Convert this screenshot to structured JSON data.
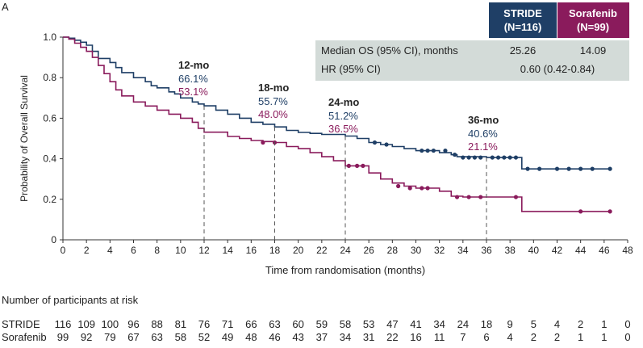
{
  "panel_label": "A",
  "chart_data": {
    "type": "line",
    "step": true,
    "xlabel": "Time from randomisation (months)",
    "ylabel": "Probability of Overall Survival",
    "xlim": [
      0,
      48
    ],
    "ylim": [
      0,
      1.0
    ],
    "xticks": [
      "0",
      "2",
      "4",
      "6",
      "8",
      "10",
      "12",
      "14",
      "16",
      "18",
      "20",
      "22",
      "24",
      "26",
      "28",
      "30",
      "32",
      "34",
      "36",
      "38",
      "40",
      "42",
      "44",
      "46",
      "48"
    ],
    "yticks": [
      "0",
      "0.2",
      "0.4",
      "0.6",
      "0.8",
      "1.0"
    ],
    "colors": {
      "stride": "#1f3f66",
      "sorafenib": "#8a1b5c",
      "table_bg": "#d3dbd8"
    },
    "series": [
      {
        "key": "stride",
        "name": "STRIDE",
        "n_label": "(N=116)",
        "points": [
          [
            0,
            1.0
          ],
          [
            0.5,
            0.995
          ],
          [
            1,
            0.985
          ],
          [
            1.5,
            0.975
          ],
          [
            2,
            0.96
          ],
          [
            2.5,
            0.93
          ],
          [
            3,
            0.895
          ],
          [
            4,
            0.875
          ],
          [
            4.5,
            0.85
          ],
          [
            5,
            0.825
          ],
          [
            6,
            0.8
          ],
          [
            7,
            0.78
          ],
          [
            7.5,
            0.76
          ],
          [
            8,
            0.75
          ],
          [
            9,
            0.73
          ],
          [
            9.5,
            0.72
          ],
          [
            10,
            0.7
          ],
          [
            11,
            0.68
          ],
          [
            11.5,
            0.67
          ],
          [
            12,
            0.661
          ],
          [
            13,
            0.64
          ],
          [
            14,
            0.62
          ],
          [
            15,
            0.6
          ],
          [
            16,
            0.58
          ],
          [
            17,
            0.57
          ],
          [
            18,
            0.557
          ],
          [
            19,
            0.54
          ],
          [
            20,
            0.53
          ],
          [
            21,
            0.525
          ],
          [
            22,
            0.52
          ],
          [
            24,
            0.512
          ],
          [
            25,
            0.5
          ],
          [
            26,
            0.48
          ],
          [
            27,
            0.47
          ],
          [
            28,
            0.46
          ],
          [
            29,
            0.45
          ],
          [
            30,
            0.44
          ],
          [
            32,
            0.43
          ],
          [
            33,
            0.42
          ],
          [
            33.5,
            0.41
          ],
          [
            36,
            0.406
          ],
          [
            39,
            0.35
          ],
          [
            46.5,
            0.35
          ]
        ],
        "censor": [
          [
            26.5,
            0.48
          ],
          [
            27.5,
            0.47
          ],
          [
            30.5,
            0.44
          ],
          [
            31,
            0.44
          ],
          [
            31.5,
            0.44
          ],
          [
            32.5,
            0.44
          ],
          [
            33.3,
            0.42
          ],
          [
            34,
            0.406
          ],
          [
            34.5,
            0.406
          ],
          [
            35,
            0.406
          ],
          [
            35.5,
            0.406
          ],
          [
            36.5,
            0.406
          ],
          [
            37,
            0.406
          ],
          [
            37.5,
            0.406
          ],
          [
            38,
            0.406
          ],
          [
            38.5,
            0.406
          ],
          [
            39.5,
            0.35
          ],
          [
            40.5,
            0.35
          ],
          [
            42,
            0.35
          ],
          [
            43,
            0.35
          ],
          [
            44,
            0.35
          ],
          [
            45,
            0.35
          ],
          [
            46.5,
            0.35
          ]
        ]
      },
      {
        "key": "sorafenib",
        "name": "Sorafenib",
        "n_label": "(N=99)",
        "points": [
          [
            0,
            1.0
          ],
          [
            0.5,
            0.99
          ],
          [
            1,
            0.97
          ],
          [
            1.5,
            0.95
          ],
          [
            2,
            0.93
          ],
          [
            2.5,
            0.9
          ],
          [
            3,
            0.86
          ],
          [
            3.5,
            0.82
          ],
          [
            4,
            0.78
          ],
          [
            4.5,
            0.74
          ],
          [
            5,
            0.71
          ],
          [
            6,
            0.68
          ],
          [
            7,
            0.66
          ],
          [
            8,
            0.64
          ],
          [
            9,
            0.62
          ],
          [
            10,
            0.6
          ],
          [
            11,
            0.58
          ],
          [
            11.5,
            0.55
          ],
          [
            12,
            0.531
          ],
          [
            14,
            0.51
          ],
          [
            15,
            0.5
          ],
          [
            16,
            0.49
          ],
          [
            17,
            0.485
          ],
          [
            18,
            0.48
          ],
          [
            19,
            0.46
          ],
          [
            20,
            0.45
          ],
          [
            21,
            0.43
          ],
          [
            22,
            0.41
          ],
          [
            23,
            0.39
          ],
          [
            24,
            0.365
          ],
          [
            26,
            0.33
          ],
          [
            27,
            0.3
          ],
          [
            28,
            0.28
          ],
          [
            29,
            0.265
          ],
          [
            30,
            0.255
          ],
          [
            32,
            0.24
          ],
          [
            33,
            0.215
          ],
          [
            34,
            0.211
          ],
          [
            39,
            0.14
          ],
          [
            46.5,
            0.14
          ]
        ],
        "censor": [
          [
            17,
            0.48
          ],
          [
            18,
            0.48
          ],
          [
            24.3,
            0.365
          ],
          [
            25,
            0.365
          ],
          [
            25.5,
            0.365
          ],
          [
            28.5,
            0.265
          ],
          [
            29.5,
            0.255
          ],
          [
            30.5,
            0.255
          ],
          [
            31,
            0.255
          ],
          [
            33.5,
            0.211
          ],
          [
            34.5,
            0.211
          ],
          [
            35.5,
            0.211
          ],
          [
            38.5,
            0.211
          ],
          [
            44,
            0.14
          ],
          [
            46.5,
            0.14
          ]
        ]
      }
    ],
    "annotations": [
      {
        "x": 12,
        "label": "12-mo",
        "stride": "66.1%",
        "sorafenib": "53.1%"
      },
      {
        "x": 18,
        "label": "18-mo",
        "stride": "55.7%",
        "sorafenib": "48.0%"
      },
      {
        "x": 24,
        "label": "24-mo",
        "stride": "51.2%",
        "sorafenib": "36.5%"
      },
      {
        "x": 36,
        "label": "36-mo",
        "stride": "40.6%",
        "sorafenib": "21.1%"
      }
    ],
    "summary_table": {
      "rows": [
        {
          "label": "Median OS (95% CI), months",
          "stride": "25.26",
          "sorafenib": "14.09"
        },
        {
          "label": "HR (95% CI)",
          "combined": "0.60 (0.42-0.84)"
        }
      ]
    },
    "risk_table": {
      "title": "Number of participants at risk",
      "times": [
        0,
        2,
        4,
        6,
        8,
        10,
        12,
        14,
        16,
        18,
        20,
        22,
        24,
        26,
        28,
        30,
        32,
        34,
        36,
        38,
        40,
        42,
        44,
        46,
        48
      ],
      "rows": [
        {
          "key": "stride",
          "label": "STRIDE",
          "values": [
            "116",
            "109",
            "100",
            "96",
            "88",
            "81",
            "76",
            "71",
            "66",
            "63",
            "60",
            "59",
            "58",
            "53",
            "47",
            "41",
            "34",
            "24",
            "18",
            "9",
            "5",
            "4",
            "2",
            "1",
            "0"
          ]
        },
        {
          "key": "sorafenib",
          "label": "Sorafenib",
          "values": [
            "99",
            "92",
            "79",
            "67",
            "63",
            "58",
            "52",
            "49",
            "48",
            "46",
            "43",
            "37",
            "34",
            "31",
            "22",
            "16",
            "11",
            "7",
            "6",
            "4",
            "2",
            "2",
            "1",
            "1",
            "0"
          ]
        }
      ]
    }
  }
}
